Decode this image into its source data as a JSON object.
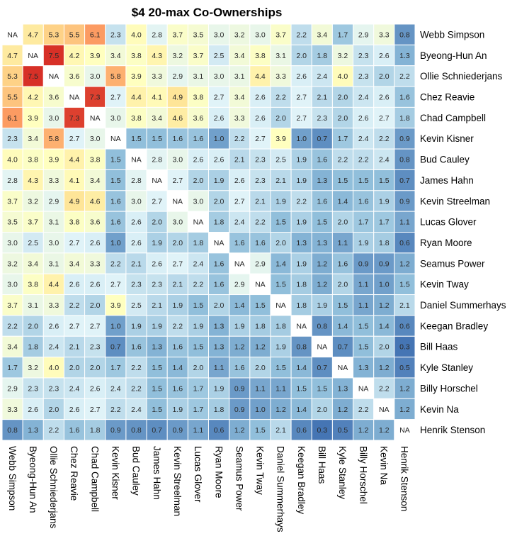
{
  "chart_data": {
    "type": "heatmap",
    "title": "$4 20-max Co-Ownerships",
    "xlabel": "",
    "ylabel": "",
    "missing_label": "NA",
    "players": [
      "Webb Simpson",
      "Byeong-Hun An",
      "Ollie Schniederjans",
      "Chez Reavie",
      "Chad Campbell",
      "Kevin Kisner",
      "Bud Cauley",
      "James Hahn",
      "Kevin Streelman",
      "Lucas Glover",
      "Ryan Moore",
      "Seamus Power",
      "Kevin Tway",
      "Daniel Summerhays",
      "Keegan Bradley",
      "Bill Haas",
      "Kyle Stanley",
      "Billy Horschel",
      "Kevin Na",
      "Henrik Stenson"
    ],
    "values": [
      [
        null,
        4.7,
        5.3,
        5.5,
        6.1,
        2.3,
        4.0,
        2.8,
        3.7,
        3.5,
        3.0,
        3.2,
        3.0,
        3.7,
        2.2,
        3.4,
        1.7,
        2.9,
        3.3,
        0.8
      ],
      [
        4.7,
        null,
        7.5,
        4.2,
        3.9,
        3.4,
        3.8,
        4.3,
        3.2,
        3.7,
        2.5,
        3.4,
        3.8,
        3.1,
        2.0,
        1.8,
        3.2,
        2.3,
        2.6,
        1.3
      ],
      [
        5.3,
        7.5,
        null,
        3.6,
        3.0,
        5.8,
        3.9,
        3.3,
        2.9,
        3.1,
        3.0,
        3.1,
        4.4,
        3.3,
        2.6,
        2.4,
        4.0,
        2.3,
        2.0,
        2.2
      ],
      [
        5.5,
        4.2,
        3.6,
        null,
        7.3,
        2.7,
        4.4,
        4.1,
        4.9,
        3.8,
        2.7,
        3.4,
        2.6,
        2.2,
        2.7,
        2.1,
        2.0,
        2.4,
        2.6,
        1.6
      ],
      [
        6.1,
        3.9,
        3.0,
        7.3,
        null,
        3.0,
        3.8,
        3.4,
        4.6,
        3.6,
        2.6,
        3.3,
        2.6,
        2.0,
        2.7,
        2.3,
        2.0,
        2.6,
        2.7,
        1.8
      ],
      [
        2.3,
        3.4,
        5.8,
        2.7,
        3.0,
        null,
        1.5,
        1.5,
        1.6,
        1.6,
        1.0,
        2.2,
        2.7,
        3.9,
        1.0,
        0.7,
        1.7,
        2.4,
        2.2,
        0.9
      ],
      [
        4.0,
        3.8,
        3.9,
        4.4,
        3.8,
        1.5,
        null,
        2.8,
        3.0,
        2.6,
        2.6,
        2.1,
        2.3,
        2.5,
        1.9,
        1.6,
        2.2,
        2.2,
        2.4,
        0.8
      ],
      [
        2.8,
        4.3,
        3.3,
        4.1,
        3.4,
        1.5,
        2.8,
        null,
        2.7,
        2.0,
        1.9,
        2.6,
        2.3,
        2.1,
        1.9,
        1.3,
        1.5,
        1.5,
        1.5,
        0.7
      ],
      [
        3.7,
        3.2,
        2.9,
        4.9,
        4.6,
        1.6,
        3.0,
        2.7,
        null,
        3.0,
        2.0,
        2.7,
        2.1,
        1.9,
        2.2,
        1.6,
        1.4,
        1.6,
        1.9,
        0.9
      ],
      [
        3.5,
        3.7,
        3.1,
        3.8,
        3.6,
        1.6,
        2.6,
        2.0,
        3.0,
        null,
        1.8,
        2.4,
        2.2,
        1.5,
        1.9,
        1.5,
        2.0,
        1.7,
        1.7,
        1.1
      ],
      [
        3.0,
        2.5,
        3.0,
        2.7,
        2.6,
        1.0,
        2.6,
        1.9,
        2.0,
        1.8,
        null,
        1.6,
        1.6,
        2.0,
        1.3,
        1.3,
        1.1,
        1.9,
        1.8,
        0.6
      ],
      [
        3.2,
        3.4,
        3.1,
        3.4,
        3.3,
        2.2,
        2.1,
        2.6,
        2.7,
        2.4,
        1.6,
        null,
        2.9,
        1.4,
        1.9,
        1.2,
        1.6,
        0.9,
        0.9,
        1.2
      ],
      [
        3.0,
        3.8,
        4.4,
        2.6,
        2.6,
        2.7,
        2.3,
        2.3,
        2.1,
        2.2,
        1.6,
        2.9,
        null,
        1.5,
        1.8,
        1.2,
        2.0,
        1.1,
        1.0,
        1.5
      ],
      [
        3.7,
        3.1,
        3.3,
        2.2,
        2.0,
        3.9,
        2.5,
        2.1,
        1.9,
        1.5,
        2.0,
        1.4,
        1.5,
        null,
        1.8,
        1.9,
        1.5,
        1.1,
        1.2,
        2.1
      ],
      [
        2.2,
        2.0,
        2.6,
        2.7,
        2.7,
        1.0,
        1.9,
        1.9,
        2.2,
        1.9,
        1.3,
        1.9,
        1.8,
        1.8,
        null,
        0.8,
        1.4,
        1.5,
        1.4,
        0.6
      ],
      [
        3.4,
        1.8,
        2.4,
        2.1,
        2.3,
        0.7,
        1.6,
        1.3,
        1.6,
        1.5,
        1.3,
        1.2,
        1.2,
        1.9,
        0.8,
        null,
        0.7,
        1.5,
        2.0,
        0.3
      ],
      [
        1.7,
        3.2,
        4.0,
        2.0,
        2.0,
        1.7,
        2.2,
        1.5,
        1.4,
        2.0,
        1.1,
        1.6,
        2.0,
        1.5,
        1.4,
        0.7,
        null,
        1.3,
        1.2,
        0.5
      ],
      [
        2.9,
        2.3,
        2.3,
        2.4,
        2.6,
        2.4,
        2.2,
        1.5,
        1.6,
        1.7,
        1.9,
        0.9,
        1.1,
        1.1,
        1.5,
        1.5,
        1.3,
        null,
        2.2,
        1.2
      ],
      [
        3.3,
        2.6,
        2.0,
        2.6,
        2.7,
        2.2,
        2.4,
        1.5,
        1.9,
        1.7,
        1.8,
        0.9,
        1.0,
        1.2,
        1.4,
        2.0,
        1.2,
        2.2,
        null,
        1.2
      ],
      [
        0.8,
        1.3,
        2.2,
        1.6,
        1.8,
        0.9,
        0.8,
        0.7,
        0.9,
        1.1,
        0.6,
        1.2,
        1.5,
        2.1,
        0.6,
        0.3,
        0.5,
        1.2,
        1.2,
        null
      ]
    ],
    "color_scale": [
      "#4575b4",
      "#91bfdb",
      "#e0f3f8",
      "#ffffbf",
      "#fee090",
      "#fc8d59",
      "#d73027"
    ],
    "missing_color": "#ffffff"
  }
}
